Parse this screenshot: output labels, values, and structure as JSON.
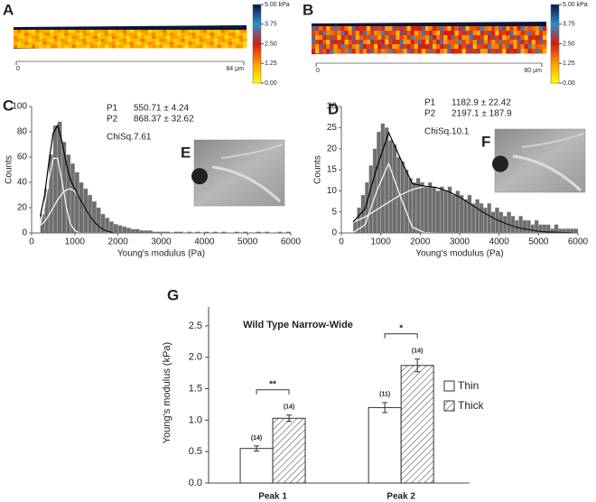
{
  "chart_data": [
    {
      "type": "colormap-image",
      "panel": "A",
      "colormap": [
        "#ffff00",
        "#ff9a00",
        "#d81810",
        "#2a8fd0",
        "#0a1540"
      ],
      "colorbar_ticks": [
        {
          "value": 5,
          "label": "5.00 kPa"
        },
        3.75,
        {
          "value": 2.5,
          "label": "2.50"
        },
        1.25,
        {
          "value": 0,
          "label": "0.00"
        }
      ],
      "scale_labels": [
        "0",
        "84 µm"
      ]
    },
    {
      "type": "colormap-image",
      "panel": "B",
      "colormap": [
        "#ffff00",
        "#ff9a00",
        "#d81810",
        "#2a8fd0",
        "#0a1540"
      ],
      "colorbar_ticks": [
        {
          "value": 5,
          "label": "5.00 kPa"
        },
        3.75,
        {
          "value": 2.5,
          "label": "2.50"
        },
        1.25,
        {
          "value": 0,
          "label": "0.00"
        }
      ],
      "scale_labels": [
        "0",
        "80 µm"
      ]
    },
    {
      "type": "histogram",
      "panel": "C",
      "inset_label": "E",
      "xlabel": "Young's modulus (Pa)",
      "ylabel": "Counts",
      "color": "#6e6e6e",
      "fit_params": [
        {
          "name": "P1",
          "text": "550.71 ± 4.24"
        },
        {
          "name": "P2",
          "text": "868.37 ± 32.62"
        }
      ],
      "chi_label": "ChiSq.7.61",
      "bins": [
        200,
        300,
        400,
        500,
        600,
        700,
        800,
        900,
        1000,
        1100,
        1200,
        1300,
        1400,
        1500,
        1600,
        1700,
        1800,
        1900,
        2000,
        2100,
        2200,
        2300,
        2400,
        2500,
        2600,
        2700,
        2800,
        2900,
        3000,
        3100,
        3200,
        3300,
        3400,
        3500,
        3600,
        3700,
        3800,
        3900,
        4000,
        4100,
        4200,
        4300,
        4400,
        4500,
        4600,
        4700,
        4800,
        4900,
        5000,
        5100,
        5200,
        5300,
        5400,
        5500,
        5600,
        5700,
        5800,
        5900,
        6000
      ],
      "counts": [
        15,
        35,
        62,
        85,
        88,
        72,
        62,
        55,
        48,
        40,
        35,
        30,
        25,
        20,
        15,
        12,
        9,
        7,
        6,
        5,
        4,
        3,
        3,
        2,
        2,
        2,
        1,
        1,
        1,
        1,
        0,
        1,
        1,
        0,
        1,
        0,
        1,
        0,
        1,
        0,
        1,
        0,
        1,
        0,
        0,
        1,
        0,
        1,
        0,
        0,
        1,
        0,
        1,
        0,
        0,
        1,
        0,
        1
      ],
      "fit_x": [
        200,
        300,
        400,
        500,
        600,
        700,
        800,
        900,
        1000,
        1100,
        1200,
        1300,
        1400,
        1500,
        1600,
        1700,
        1800,
        1900,
        2000
      ],
      "fits": [
        {
          "color": "#ffffff",
          "values": [
            7,
            21,
            42,
            59,
            59,
            42,
            21,
            7,
            2,
            0,
            0,
            0,
            0,
            0,
            0,
            0,
            0,
            0,
            0
          ]
        },
        {
          "color": "#ffffff",
          "values": [
            6,
            9,
            14,
            20,
            26,
            31,
            34,
            35,
            33,
            28,
            22,
            16,
            11,
            7,
            4,
            2,
            1,
            0,
            0
          ]
        },
        {
          "color": "#000000",
          "values": [
            13,
            30,
            56,
            79,
            85,
            73,
            55,
            42,
            35,
            28,
            22,
            16,
            11,
            7,
            4,
            2,
            1,
            0,
            0
          ]
        }
      ],
      "xlim": [
        0,
        6000
      ],
      "xticks": [
        0,
        1000,
        2000,
        3000,
        4000,
        5000,
        6000
      ],
      "ylim": [
        0,
        100
      ],
      "yticks": [
        0,
        20,
        40,
        60,
        80,
        100
      ]
    },
    {
      "type": "histogram",
      "panel": "D",
      "inset_label": "F",
      "xlabel": "Young's modulus (Pa)",
      "ylabel": "Counts",
      "color": "#6e6e6e",
      "fit_params": [
        {
          "name": "P1",
          "text": "1182.9 ± 22.42"
        },
        {
          "name": "P2",
          "text": "2197.1 ± 187.9"
        }
      ],
      "chi_label": "ChiSq.10.1",
      "bins": [
        300,
        400,
        500,
        600,
        700,
        800,
        900,
        1000,
        1100,
        1200,
        1300,
        1400,
        1500,
        1600,
        1700,
        1800,
        1900,
        2000,
        2100,
        2200,
        2300,
        2400,
        2500,
        2600,
        2700,
        2800,
        2900,
        3000,
        3100,
        3200,
        3300,
        3400,
        3500,
        3600,
        3700,
        3800,
        3900,
        4000,
        4100,
        4200,
        4300,
        4400,
        4500,
        4600,
        4700,
        4800,
        4900,
        5000,
        5100,
        5200,
        5300,
        5400,
        5500,
        5600,
        5700,
        5800,
        5900,
        6000
      ],
      "counts": [
        3,
        6,
        9,
        12,
        16,
        20,
        24,
        26,
        25,
        22,
        21,
        18,
        17,
        15,
        13,
        12,
        13,
        12,
        11,
        12,
        11,
        10,
        11,
        10,
        11,
        9,
        10,
        9,
        8,
        9,
        7,
        8,
        7,
        6,
        7,
        5,
        6,
        5,
        4,
        5,
        4,
        3,
        4,
        3,
        3,
        2,
        3,
        2,
        2,
        2,
        1,
        2,
        1,
        1,
        1,
        1,
        1
      ],
      "fit_x": [
        300,
        600,
        900,
        1200,
        1500,
        1800,
        2100,
        2400,
        2700,
        3000,
        3300,
        3600,
        3900,
        4200,
        4500,
        4800,
        5100,
        5400,
        5700,
        6000
      ],
      "fits": [
        {
          "color": "#ffffff",
          "values": [
            0.1,
            1.9,
            10,
            16.5,
            8.6,
            1.4,
            0.1,
            0,
            0,
            0,
            0,
            0,
            0,
            0,
            0,
            0,
            0,
            0,
            0,
            0
          ]
        },
        {
          "color": "#ffffff",
          "values": [
            2.5,
            3.8,
            5.5,
            7.3,
            9,
            10.3,
            11,
            10.8,
            9.9,
            8.5,
            6.7,
            4.9,
            3.3,
            2.1,
            1.2,
            0.7,
            0.3,
            0.2,
            0.1,
            0
          ]
        },
        {
          "color": "#000000",
          "values": [
            2.6,
            5.7,
            15.5,
            23.8,
            17.6,
            11.7,
            11.1,
            10.8,
            9.9,
            8.5,
            6.7,
            4.9,
            3.3,
            2.1,
            1.2,
            0.7,
            0.3,
            0.2,
            0.1,
            0
          ]
        }
      ],
      "xlim": [
        0,
        6000
      ],
      "xticks": [
        0,
        1000,
        2000,
        3000,
        4000,
        5000,
        6000
      ],
      "ylim": [
        0,
        30
      ],
      "yticks": [
        0,
        5,
        10,
        15,
        20,
        25,
        30
      ]
    },
    {
      "type": "bar-error",
      "panel": "G",
      "title": "Wild Type Narrow-Wide",
      "ylabel": "Young's modulus (kPa)",
      "categories": [
        "Peak 1",
        "Peak 2"
      ],
      "series": [
        {
          "name": "Thin",
          "color": "#ffffff",
          "hatch": false,
          "values": [
            0.55,
            1.2
          ],
          "errors": [
            0.04,
            0.08
          ],
          "n_labels": [
            "(14)",
            "(11)"
          ]
        },
        {
          "name": "Thick",
          "color": "#ffffff",
          "hatch": true,
          "values": [
            1.03,
            1.87
          ],
          "errors": [
            0.05,
            0.1
          ],
          "n_labels": [
            "(14)",
            "(14)"
          ]
        }
      ],
      "significance": [
        "**",
        "*"
      ],
      "ylim": [
        0,
        2.8
      ],
      "yticks": [
        {
          "value": 0,
          "label": "0.0"
        },
        0.5,
        {
          "value": 1,
          "label": "1.0"
        },
        1.5,
        {
          "value": 2,
          "label": "2.0"
        },
        2.5
      ]
    }
  ]
}
